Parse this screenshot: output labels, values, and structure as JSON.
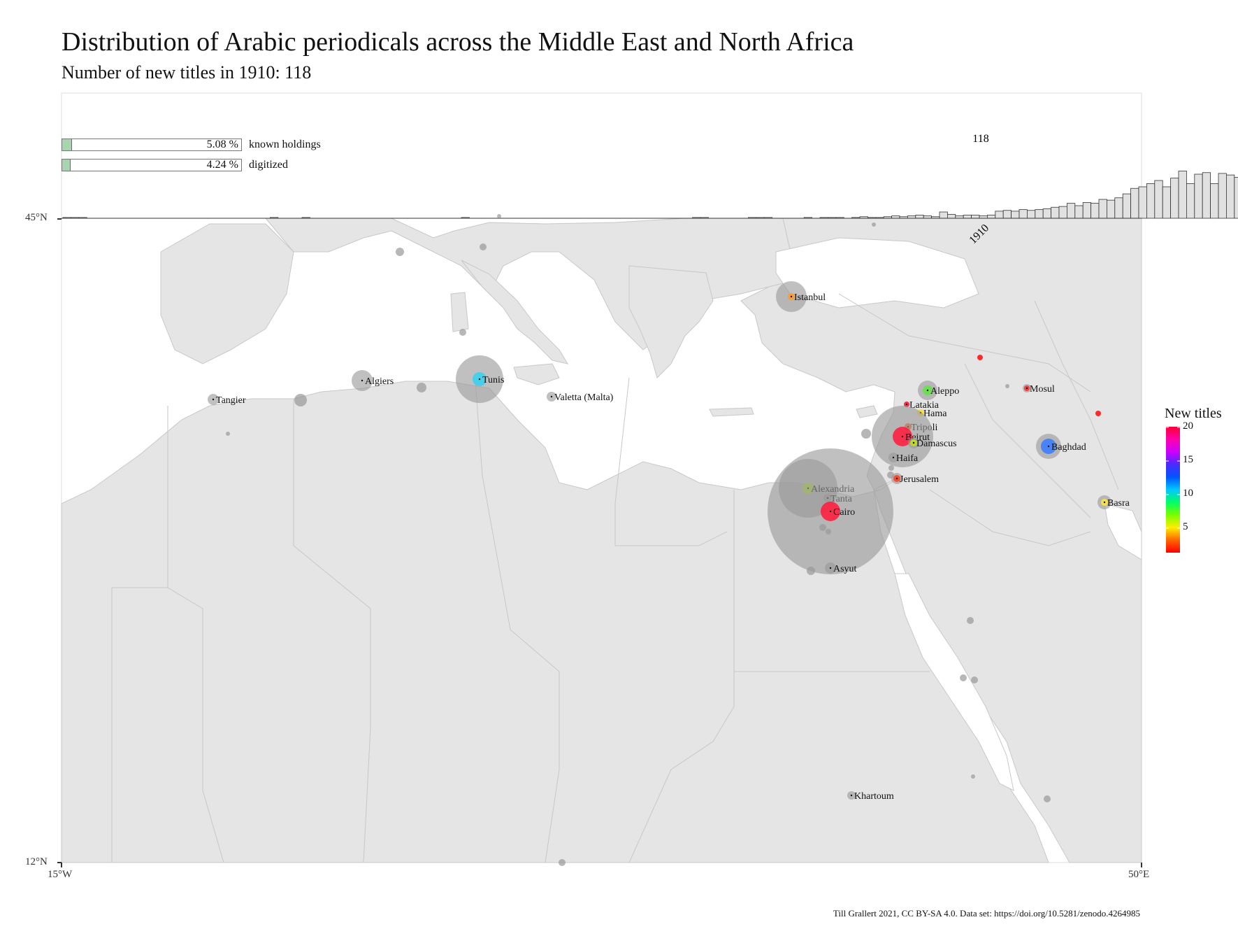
{
  "title": "Distribution of Arabic periodicals across the Middle East and North Africa",
  "subtitle": "Number of new titles in 1910: 118",
  "caption": "Till Grallert 2021, CC BY-SA 4.0. Data set: https://doi.org/10.5281/zenodo.4264985",
  "progress": {
    "known_holdings": {
      "label": "known holdings",
      "value_text": "5.08 %",
      "fraction": 0.0508
    },
    "digitized": {
      "label": "digitized",
      "value_text": "4.24 %",
      "fraction": 0.0424
    }
  },
  "axes": {
    "lat_top": "45°N",
    "lat_bottom": "12°N",
    "lon_left": "15°W",
    "lon_right": "50°E"
  },
  "histogram": {
    "current_year_label": "1910",
    "current_value_label": "118",
    "values": [
      1,
      1,
      1,
      0,
      0,
      0,
      0,
      0,
      0,
      0,
      0,
      0,
      0,
      0,
      0,
      0,
      0,
      0,
      0,
      0,
      0,
      0,
      0,
      0,
      0,
      0,
      1,
      0,
      0,
      0,
      1,
      0,
      0,
      0,
      0,
      0,
      0,
      0,
      0,
      0,
      0,
      0,
      0,
      0,
      0,
      0,
      0,
      0,
      0,
      0,
      1,
      0,
      0,
      0,
      0,
      0,
      0,
      0,
      0,
      0,
      0,
      0,
      0,
      0,
      0,
      0,
      0,
      0,
      0,
      0,
      0,
      0,
      0,
      0,
      0,
      0,
      0,
      0,
      0,
      1,
      1,
      0,
      0,
      0,
      0,
      0,
      1,
      1,
      1,
      0,
      0,
      0,
      0,
      1,
      0,
      1,
      1,
      1,
      0,
      1,
      2,
      1,
      1,
      2,
      3,
      2,
      3,
      4,
      3,
      2,
      8,
      5,
      3,
      4,
      4,
      3,
      4,
      9,
      10,
      9,
      11,
      10,
      11,
      12,
      14,
      15,
      19,
      16,
      20,
      19,
      24,
      23,
      26,
      31,
      38,
      40,
      44,
      48,
      40,
      51,
      60,
      44,
      56,
      58,
      44,
      57,
      55,
      52,
      58,
      50,
      50,
      62,
      58,
      36,
      0,
      0
    ],
    "bar_colors": {
      "past": "#e1e1e1",
      "current": "#ffb3b3",
      "future": "#ffffff",
      "stroke": "#333333"
    }
  },
  "legend": {
    "title": "New titles",
    "ticks": [
      "20",
      "15",
      "10",
      "5"
    ],
    "gradient": [
      "#ff0033",
      "#ff00aa",
      "#cc00ff",
      "#4a2bff",
      "#0055ff",
      "#00c8ff",
      "#00ff66",
      "#77ff00",
      "#ffee00",
      "#ff6600",
      "#ff0000"
    ]
  },
  "cities": [
    {
      "name": "Istanbul",
      "color": "#ff9a2e"
    },
    {
      "name": "Algiers",
      "color": "#999999"
    },
    {
      "name": "Tunis",
      "color": "#3dd0f0"
    },
    {
      "name": "Tangier",
      "color": "#999999"
    },
    {
      "name": "Valetta (Malta)",
      "color": "#999999"
    },
    {
      "name": "Aleppo",
      "color": "#66e04a"
    },
    {
      "name": "Mosul",
      "color": "#ff3333"
    },
    {
      "name": "Latakia",
      "color": "#ff2040"
    },
    {
      "name": "Hama",
      "color": "#ffe533"
    },
    {
      "name": "Tripoli",
      "color": "#ff6020"
    },
    {
      "name": "Beirut",
      "color": "#ff2040"
    },
    {
      "name": "Damascus",
      "color": "#bbe020"
    },
    {
      "name": "Baghdad",
      "color": "#3c7dff"
    },
    {
      "name": "Haifa",
      "color": "#999999"
    },
    {
      "name": "Jerusalem",
      "color": "#ff4020"
    },
    {
      "name": "Alexandria",
      "color": "#b0e030"
    },
    {
      "name": "Tanta",
      "color": "#999999"
    },
    {
      "name": "Cairo",
      "color": "#ff2040"
    },
    {
      "name": "Basra",
      "color": "#ffe533"
    },
    {
      "name": "Asyut",
      "color": "#999999"
    },
    {
      "name": "Khartoum",
      "color": "#999999"
    }
  ]
}
